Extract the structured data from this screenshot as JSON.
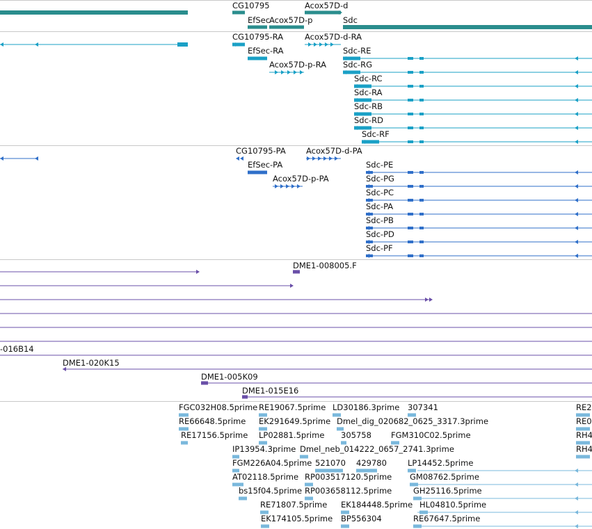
{
  "colors": {
    "gene": "#2a8d8d",
    "mrna": "#1aa0c6",
    "protein": "#2f6fc9",
    "clone": "#6a4fa8",
    "est": "#7ab8dc",
    "separator": "#c8c8c8"
  },
  "tracks": {
    "genes": {
      "labels": [
        "CG10795",
        "Acox57D-d",
        "EfSec",
        "Acox57D-p",
        "Sdc"
      ]
    },
    "transcripts": {
      "labels": [
        "CG10795-RA",
        "Acox57D-d-RA",
        "EfSec-RA",
        "Sdc-RE",
        "Acox57D-p-RA",
        "Sdc-RG",
        "Sdc-RC",
        "Sdc-RA",
        "Sdc-RB",
        "Sdc-RD",
        "Sdc-RF"
      ]
    },
    "proteins": {
      "labels": [
        "CG10795-PA",
        "Acox57D-d-PA",
        "EfSec-PA",
        "Sdc-PE",
        "Acox57D-p-PA",
        "Sdc-PG",
        "Sdc-PC",
        "Sdc-PA",
        "Sdc-PB",
        "Sdc-PD",
        "Sdc-PF"
      ]
    },
    "clones": {
      "labels": [
        "DME1-008005.F",
        "-016B14",
        "DME1-020K15",
        "DME1-005K09",
        "DME1-015E16"
      ]
    },
    "ests": {
      "labels": [
        "FGC032H08.5prime",
        "RE19067.5prime",
        "LD30186.3prime",
        "307341",
        "RE2",
        "RE66648.5prime",
        "EK291649.5prime",
        "Dmel_dig_020682_0625_3317.3prime",
        "RE0",
        "RE17156.5prime",
        "LP02881.5prime",
        "305758",
        "FGM310C02.5prime",
        "RH4",
        "IP13954.3prime",
        "Dmel_neb_014222_0657_2741.3prime",
        "RH4",
        "FGM226A04.5prime",
        "521070",
        "429780",
        "LP14452.5prime",
        "AT02118.5prime",
        "RP003517120.5prime",
        "GM08762.5prime",
        "bs15f04.5prime",
        "RP003658112.5prime",
        "GH25116.5prime",
        "RE71807.5prime",
        "EK184448.5prime",
        "HL04810.5prime",
        "EK174105.5prime",
        "BP556304",
        "RE67647.5prime"
      ]
    }
  }
}
